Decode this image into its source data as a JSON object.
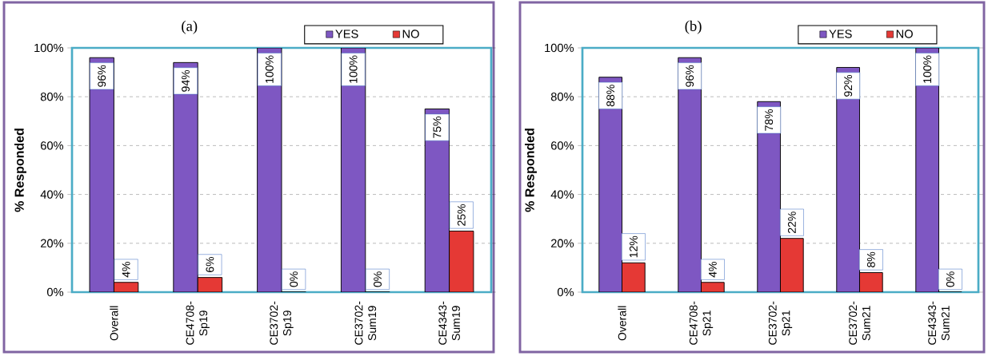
{
  "chart_data": [
    {
      "type": "bar",
      "title": "(a)",
      "ylabel": "% Responded",
      "categories": [
        "Overall",
        "CE4708-Sp19",
        "CE3702-Sp19",
        "CE3702-Sum19",
        "CE4343-Sum19"
      ],
      "series": [
        {
          "name": "YES",
          "color": "#7e57c2",
          "values": [
            96,
            94,
            100,
            100,
            75
          ],
          "value_labels": [
            "96%",
            "94%",
            "100%",
            "100%",
            "75%"
          ]
        },
        {
          "name": "NO",
          "color": "#e53935",
          "values": [
            4,
            6,
            0,
            0,
            25
          ],
          "value_labels": [
            "4%",
            "6%",
            "0%",
            "0%",
            "25%"
          ]
        }
      ],
      "ylim": [
        0,
        100
      ],
      "yticks": [
        {
          "value": 0,
          "label": "0%"
        },
        {
          "value": 20,
          "label": "20%"
        },
        {
          "value": 40,
          "label": "40%"
        },
        {
          "value": 60,
          "label": "60%"
        },
        {
          "value": 80,
          "label": "80%"
        },
        {
          "value": 100,
          "label": "100%"
        }
      ],
      "grid": "y",
      "legend": "top"
    },
    {
      "type": "bar",
      "title": "(b)",
      "ylabel": "% Responded",
      "categories": [
        "Overall",
        "CE4708-Sp21",
        "CE3702-Sp21",
        "CE3702-Sum21",
        "CE4343-Sum21"
      ],
      "series": [
        {
          "name": "YES",
          "color": "#7e57c2",
          "values": [
            88,
            96,
            78,
            92,
            100
          ],
          "value_labels": [
            "88%",
            "96%",
            "78%",
            "92%",
            "100%"
          ]
        },
        {
          "name": "NO",
          "color": "#e53935",
          "values": [
            12,
            4,
            22,
            8,
            0
          ],
          "value_labels": [
            "12%",
            "4%",
            "22%",
            "8%",
            "0%"
          ]
        }
      ],
      "ylim": [
        0,
        100
      ],
      "yticks": [
        {
          "value": 0,
          "label": "0%"
        },
        {
          "value": 20,
          "label": "20%"
        },
        {
          "value": 40,
          "label": "40%"
        },
        {
          "value": 60,
          "label": "60%"
        },
        {
          "value": 80,
          "label": "80%"
        },
        {
          "value": 100,
          "label": "100%"
        }
      ],
      "grid": "y",
      "legend": "top"
    }
  ]
}
